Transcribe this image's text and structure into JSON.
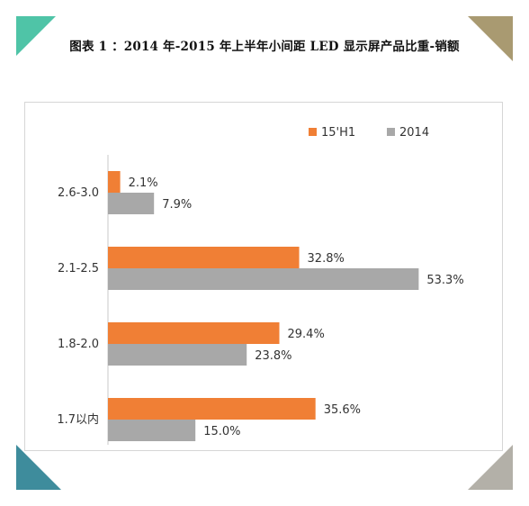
{
  "figure_title": "图表 1 ：2014 年-2015 年上半年小间距 LED 显示屏产品比重-销额",
  "colors": {
    "series_2015h1": "#f07f35",
    "series_2014": "#a8a8a8",
    "corner_top_left": "#4fc4a7",
    "corner_top_right": "#a99a71",
    "corner_bottom_left": "#3e8c9c",
    "corner_bottom_right": "#b3b0a8"
  },
  "chart_data": {
    "type": "bar",
    "orientation": "horizontal",
    "categories": [
      "2.6-3.0",
      "2.1-2.5",
      "1.8-2.0",
      "1.7以内"
    ],
    "series": [
      {
        "name": "15'H1",
        "values": [
          2.1,
          32.8,
          29.4,
          35.6
        ],
        "labels": [
          "2.1%",
          "32.8%",
          "29.4%",
          "35.6%"
        ]
      },
      {
        "name": "2014",
        "values": [
          7.9,
          53.3,
          23.8,
          15.0
        ],
        "labels": [
          "7.9%",
          "53.3%",
          "23.8%",
          "15.0%"
        ]
      }
    ],
    "xlim": [
      0,
      60
    ],
    "grid": false,
    "legend_position": "top-right"
  }
}
